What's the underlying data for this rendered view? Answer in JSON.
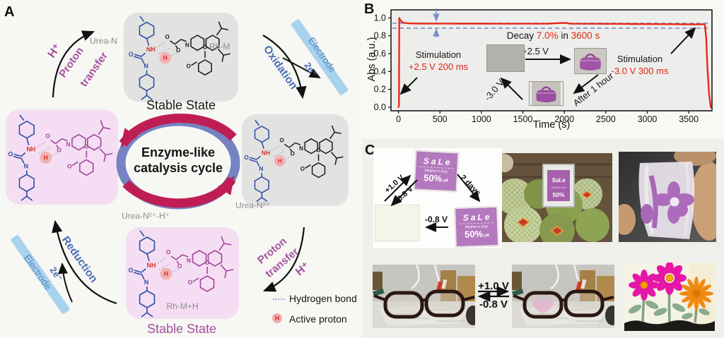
{
  "figure": {
    "a_label": "A",
    "b_label": "B",
    "c_label": "C"
  },
  "panel_a": {
    "h_plus": "H⁺",
    "proton_1": "Proton",
    "proton_2": "transfer",
    "urea_n": "Urea-N",
    "rh_m": "Rh-M",
    "stable_top": "Stable State",
    "oxidation": "Oxidation",
    "electrode": "Electrode",
    "two_e": "2e⁻",
    "urea_n2": "Urea-N²⁺",
    "urea_n2h": "Urea-N²⁺-H⁺",
    "rh_mh": "Rh-M+H",
    "stable_bottom": "Stable State",
    "reduction": "Reduction",
    "cycle_1": "Enzyme-like",
    "cycle_2": "catalysis cycle",
    "legend_hbond": "Hydrogen bond",
    "legend_proton": "Active proton",
    "legend_h": "H",
    "atoms": {
      "nh": "NH",
      "n": "N",
      "o": "O",
      "h": "H"
    }
  },
  "panel_b": {
    "stim1_1": "Stimulation",
    "stim1_2": "+2.5 V 200 ms",
    "decay_1": "Decay",
    "decay_2": "7.0%",
    "decay_3": "in",
    "decay_4": "3600 s",
    "inset_plus": "+2.5 V",
    "inset_minus": "-3.0 V",
    "inset_after": "After 1 hour",
    "stim2_1": "Stimulation",
    "stim2_2": "-3.0 V 300 ms",
    "chart_data": {
      "type": "line",
      "title": "",
      "xlabel": "Time (s)",
      "ylabel": "Abs (a.u.)",
      "xlim": [
        -90,
        3780
      ],
      "ylim": [
        -0.04,
        1.09
      ],
      "xticks": [
        0,
        500,
        1000,
        1500,
        2000,
        2500,
        3000,
        3500
      ],
      "yticks": [
        0.0,
        0.2,
        0.4,
        0.6,
        0.8,
        1.0
      ],
      "grid": false,
      "legend_position": "none",
      "series": [
        {
          "name": "absorbance",
          "color": "#e8291c",
          "x": [
            0,
            6,
            10,
            18,
            30,
            60,
            120,
            250,
            450,
            700,
            1000,
            1400,
            1800,
            2020,
            2060,
            2100,
            2400,
            2800,
            3200,
            3500,
            3650,
            3680,
            3695,
            3710,
            3725,
            3745,
            3765
          ],
          "y": [
            0.0,
            0.02,
            1.0,
            0.985,
            0.965,
            0.945,
            0.94,
            0.937,
            0.937,
            0.936,
            0.936,
            0.935,
            0.936,
            0.945,
            0.937,
            0.935,
            0.934,
            0.932,
            0.93,
            0.928,
            0.927,
            0.93,
            0.92,
            0.78,
            0.45,
            0.15,
            0.0
          ]
        }
      ],
      "reference_lines": [
        {
          "y": 0.94,
          "color": "#7b8fc7",
          "style": "dashed"
        },
        {
          "y": 0.885,
          "color": "#7b8fc7",
          "style": "dashed"
        }
      ],
      "annotations": [
        "Stimulation +2.5 V 200 ms",
        "Decay 7.0% in 3600 s",
        "Stimulation -3.0 V 300 ms",
        "+2.5 V",
        "-3.0 V",
        "After 1 hour"
      ]
    }
  },
  "panel_c": {
    "sign": {
      "title": "SaLe",
      "subtitle": "Mother's Day",
      "percent": "50%",
      "off": "off"
    },
    "switch_pos": "+1.0 V",
    "switch_neg": "-0.8 V",
    "two_days": "2 days",
    "erase": "-0.8 V",
    "glasses_pos": "+1.0 V",
    "glasses_neg": "-0.8 V"
  }
}
